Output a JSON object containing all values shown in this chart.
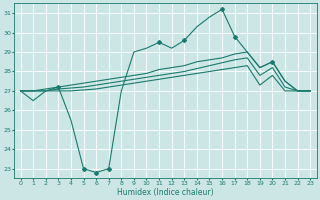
{
  "xlabel": "Humidex (Indice chaleur)",
  "bg_color": "#cce5e5",
  "grid_color": "#ffffff",
  "line_color": "#1a7a6e",
  "xlim": [
    -0.5,
    23.5
  ],
  "ylim": [
    22.5,
    31.5
  ],
  "yticks": [
    23,
    24,
    25,
    26,
    27,
    28,
    29,
    30,
    31
  ],
  "xticks": [
    0,
    1,
    2,
    3,
    4,
    5,
    6,
    7,
    8,
    9,
    10,
    11,
    12,
    13,
    14,
    15,
    16,
    17,
    18,
    19,
    20,
    21,
    22,
    23
  ],
  "line1_x": [
    0,
    1,
    2,
    3,
    4,
    5,
    6,
    7,
    8,
    9,
    10,
    11,
    12,
    13,
    14,
    15,
    16,
    17,
    18,
    19,
    20,
    21,
    22,
    23
  ],
  "line1_y": [
    27.0,
    26.5,
    27.0,
    27.2,
    25.5,
    23.0,
    22.8,
    23.0,
    27.0,
    29.0,
    29.2,
    29.5,
    29.2,
    29.6,
    30.3,
    30.8,
    31.2,
    29.8,
    29.0,
    28.2,
    28.5,
    27.5,
    27.0,
    27.0
  ],
  "line2_x": [
    0,
    1,
    2,
    3,
    4,
    5,
    6,
    7,
    8,
    9,
    10,
    11,
    12,
    13,
    14,
    15,
    16,
    17,
    18,
    19,
    20,
    21,
    22,
    23
  ],
  "line2_y": [
    27.0,
    27.0,
    27.1,
    27.2,
    27.3,
    27.4,
    27.5,
    27.6,
    27.7,
    27.8,
    27.9,
    28.1,
    28.2,
    28.3,
    28.5,
    28.6,
    28.7,
    28.9,
    29.0,
    28.2,
    28.5,
    27.5,
    27.0,
    27.0
  ],
  "line3_x": [
    0,
    1,
    2,
    3,
    4,
    5,
    6,
    7,
    8,
    9,
    10,
    11,
    12,
    13,
    14,
    15,
    16,
    17,
    18,
    19,
    20,
    21,
    22,
    23
  ],
  "line3_y": [
    27.0,
    27.0,
    27.0,
    27.1,
    27.15,
    27.2,
    27.3,
    27.4,
    27.5,
    27.6,
    27.7,
    27.8,
    27.9,
    28.0,
    28.15,
    28.3,
    28.45,
    28.6,
    28.7,
    27.8,
    28.2,
    27.2,
    27.0,
    27.0
  ],
  "line4_x": [
    0,
    1,
    2,
    3,
    4,
    5,
    6,
    7,
    8,
    9,
    10,
    11,
    12,
    13,
    14,
    15,
    16,
    17,
    18,
    19,
    20,
    21,
    22,
    23
  ],
  "line4_y": [
    27.0,
    27.0,
    27.0,
    27.0,
    27.0,
    27.05,
    27.1,
    27.2,
    27.3,
    27.4,
    27.5,
    27.6,
    27.7,
    27.8,
    27.9,
    28.0,
    28.1,
    28.2,
    28.3,
    27.3,
    27.8,
    27.0,
    27.0,
    27.0
  ]
}
